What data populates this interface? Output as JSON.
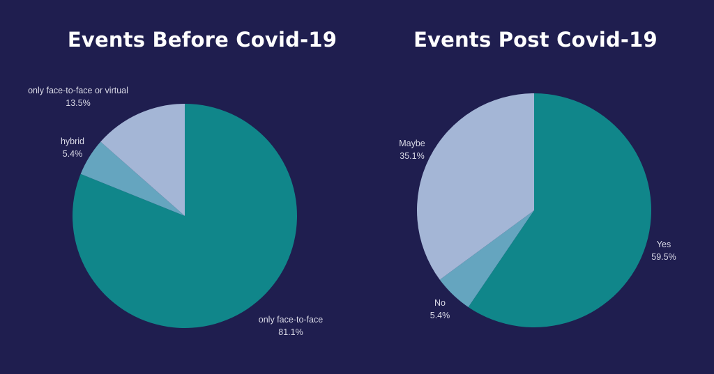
{
  "chart_data": [
    {
      "type": "pie",
      "title": "Events Before Covid-19",
      "slices": [
        {
          "label": "only face-to-face",
          "value": 81.1,
          "display": "81.1%",
          "color": "#10868a"
        },
        {
          "label": "hybrid",
          "value": 5.4,
          "display": "5.4%",
          "color": "#65a5bf"
        },
        {
          "label": "only face-to-face or virtual",
          "value": 13.5,
          "display": "13.5%",
          "color": "#a4b6d6"
        }
      ]
    },
    {
      "type": "pie",
      "title": "Events Post Covid-19",
      "slices": [
        {
          "label": "Yes",
          "value": 59.5,
          "display": "59.5%",
          "color": "#10868a"
        },
        {
          "label": "No",
          "value": 5.4,
          "display": "5.4%",
          "color": "#65a5bf"
        },
        {
          "label": "Maybe",
          "value": 35.1,
          "display": "35.1%",
          "color": "#a4b6d6"
        }
      ]
    }
  ]
}
